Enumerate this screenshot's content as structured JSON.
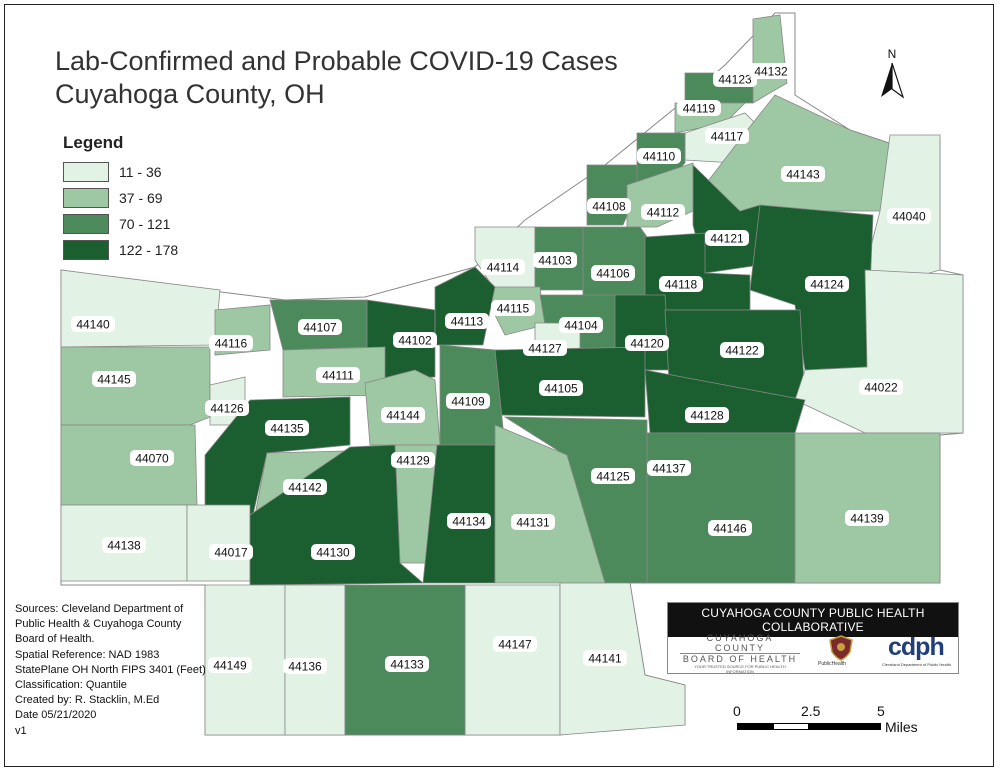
{
  "title": {
    "line1": "Lab-Confirmed and Probable COVID-19 Cases",
    "line2": "Cuyahoga County, OH"
  },
  "legend": {
    "title": "Legend",
    "classes": [
      {
        "label": "11 - 36",
        "color": "#e2f3e6"
      },
      {
        "label": "37 - 69",
        "color": "#9ec8a3"
      },
      {
        "label": "70 - 121",
        "color": "#4c8a5c"
      },
      {
        "label": "122 - 178",
        "color": "#1b5e30"
      }
    ]
  },
  "zip_codes": [
    {
      "zip": "44123",
      "class": 2
    },
    {
      "zip": "44132",
      "class": 1
    },
    {
      "zip": "44119",
      "class": 1
    },
    {
      "zip": "44117",
      "class": 0
    },
    {
      "zip": "44110",
      "class": 2
    },
    {
      "zip": "44143",
      "class": 1
    },
    {
      "zip": "44108",
      "class": 2
    },
    {
      "zip": "44112",
      "class": 1
    },
    {
      "zip": "44040",
      "class": 0
    },
    {
      "zip": "44121",
      "class": 3
    },
    {
      "zip": "44114",
      "class": 0
    },
    {
      "zip": "44103",
      "class": 2
    },
    {
      "zip": "44106",
      "class": 2
    },
    {
      "zip": "44118",
      "class": 3
    },
    {
      "zip": "44124",
      "class": 3
    },
    {
      "zip": "44115",
      "class": 1
    },
    {
      "zip": "44140",
      "class": 0
    },
    {
      "zip": "44107",
      "class": 2
    },
    {
      "zip": "44102",
      "class": 3
    },
    {
      "zip": "44113",
      "class": 3
    },
    {
      "zip": "44104",
      "class": 2
    },
    {
      "zip": "44127",
      "class": 0
    },
    {
      "zip": "44120",
      "class": 3
    },
    {
      "zip": "44122",
      "class": 3
    },
    {
      "zip": "44116",
      "class": 1
    },
    {
      "zip": "44111",
      "class": 1
    },
    {
      "zip": "44105",
      "class": 3
    },
    {
      "zip": "44145",
      "class": 1
    },
    {
      "zip": "44022",
      "class": 0
    },
    {
      "zip": "44126",
      "class": 0
    },
    {
      "zip": "44144",
      "class": 1
    },
    {
      "zip": "44109",
      "class": 2
    },
    {
      "zip": "44128",
      "class": 3
    },
    {
      "zip": "44135",
      "class": 3
    },
    {
      "zip": "44070",
      "class": 1
    },
    {
      "zip": "44129",
      "class": 1
    },
    {
      "zip": "44137",
      "class": 2
    },
    {
      "zip": "44125",
      "class": 2
    },
    {
      "zip": "44142",
      "class": 1
    },
    {
      "zip": "44134",
      "class": 3
    },
    {
      "zip": "44131",
      "class": 1
    },
    {
      "zip": "44146",
      "class": 2
    },
    {
      "zip": "44139",
      "class": 1
    },
    {
      "zip": "44138",
      "class": 0
    },
    {
      "zip": "44017",
      "class": 0
    },
    {
      "zip": "44130",
      "class": 3
    },
    {
      "zip": "44147",
      "class": 0
    },
    {
      "zip": "44141",
      "class": 0
    },
    {
      "zip": "44149",
      "class": 0
    },
    {
      "zip": "44136",
      "class": 0
    },
    {
      "zip": "44133",
      "class": 2
    }
  ],
  "sources": [
    "Sources: Cleveland Department of",
    "Public Health & Cuyahoga County",
    "Board of Health.",
    "Spatial Reference: NAD 1983",
    "StatePlane OH North FIPS 3401 (Feet)",
    "Classification: Quantile",
    "Created by: R. Stacklin, M.Ed",
    "Date 05/21/2020",
    "v1"
  ],
  "collaborative": {
    "header": "CUYAHOGA COUNTY PUBLIC HEALTH COLLABORATIVE",
    "boh_line1": "CUYAHOGA COUNTY",
    "boh_line2": "BOARD OF HEALTH",
    "boh_tagline": "YOUR TRUSTED SOURCE FOR PUBLIC HEALTH INFORMATION",
    "seal_label": "PublicHealth",
    "cdph_logo": "cdph",
    "cdph_tagline": "Cleveland Department of Public Health"
  },
  "north_arrow": {
    "label": "N"
  },
  "scale_bar": {
    "ticks": [
      "0",
      "2.5",
      "5"
    ],
    "unit": "Miles"
  }
}
